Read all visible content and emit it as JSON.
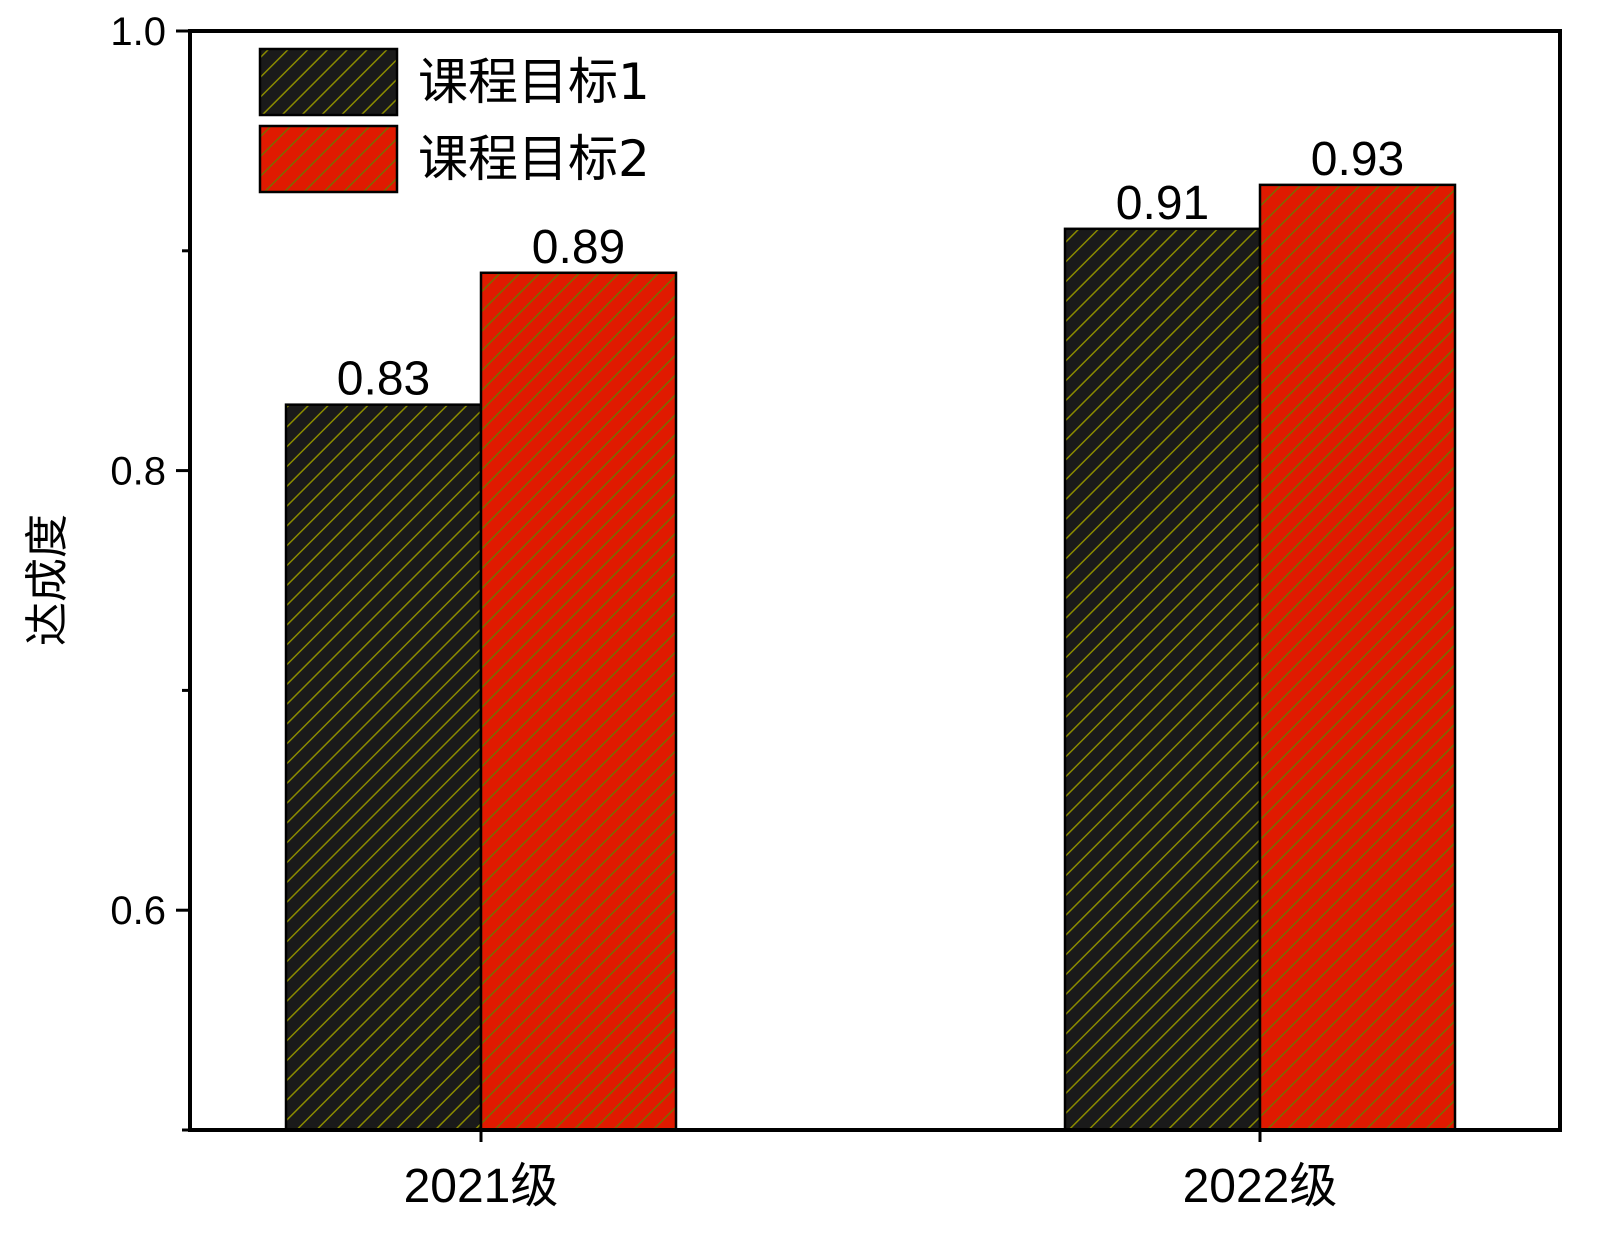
{
  "chart_data": {
    "type": "bar",
    "categories": [
      "2021级",
      "2022级"
    ],
    "series": [
      {
        "name": "课程目标1",
        "values": [
          0.83,
          0.91
        ],
        "color": "#1a1a1a",
        "hatch_color": "#8a8a00"
      },
      {
        "name": "课程目标2",
        "values": [
          0.89,
          0.93
        ],
        "color": "#e01a00",
        "hatch_color": "#7a6a00"
      }
    ],
    "data_labels": [
      [
        "0.83",
        "0.91"
      ],
      [
        "0.89",
        "0.93"
      ]
    ],
    "title": "",
    "xlabel": "",
    "ylabel": "达成度",
    "ylim": [
      0.5,
      1.0
    ],
    "yticks": [
      0.6,
      0.8,
      1.0
    ],
    "ytick_labels": [
      "0.6",
      "0.8",
      "1.0"
    ],
    "yminor_ticks": [
      0.5,
      0.7,
      0.9
    ],
    "legend_position": "top-left",
    "grid": false
  }
}
